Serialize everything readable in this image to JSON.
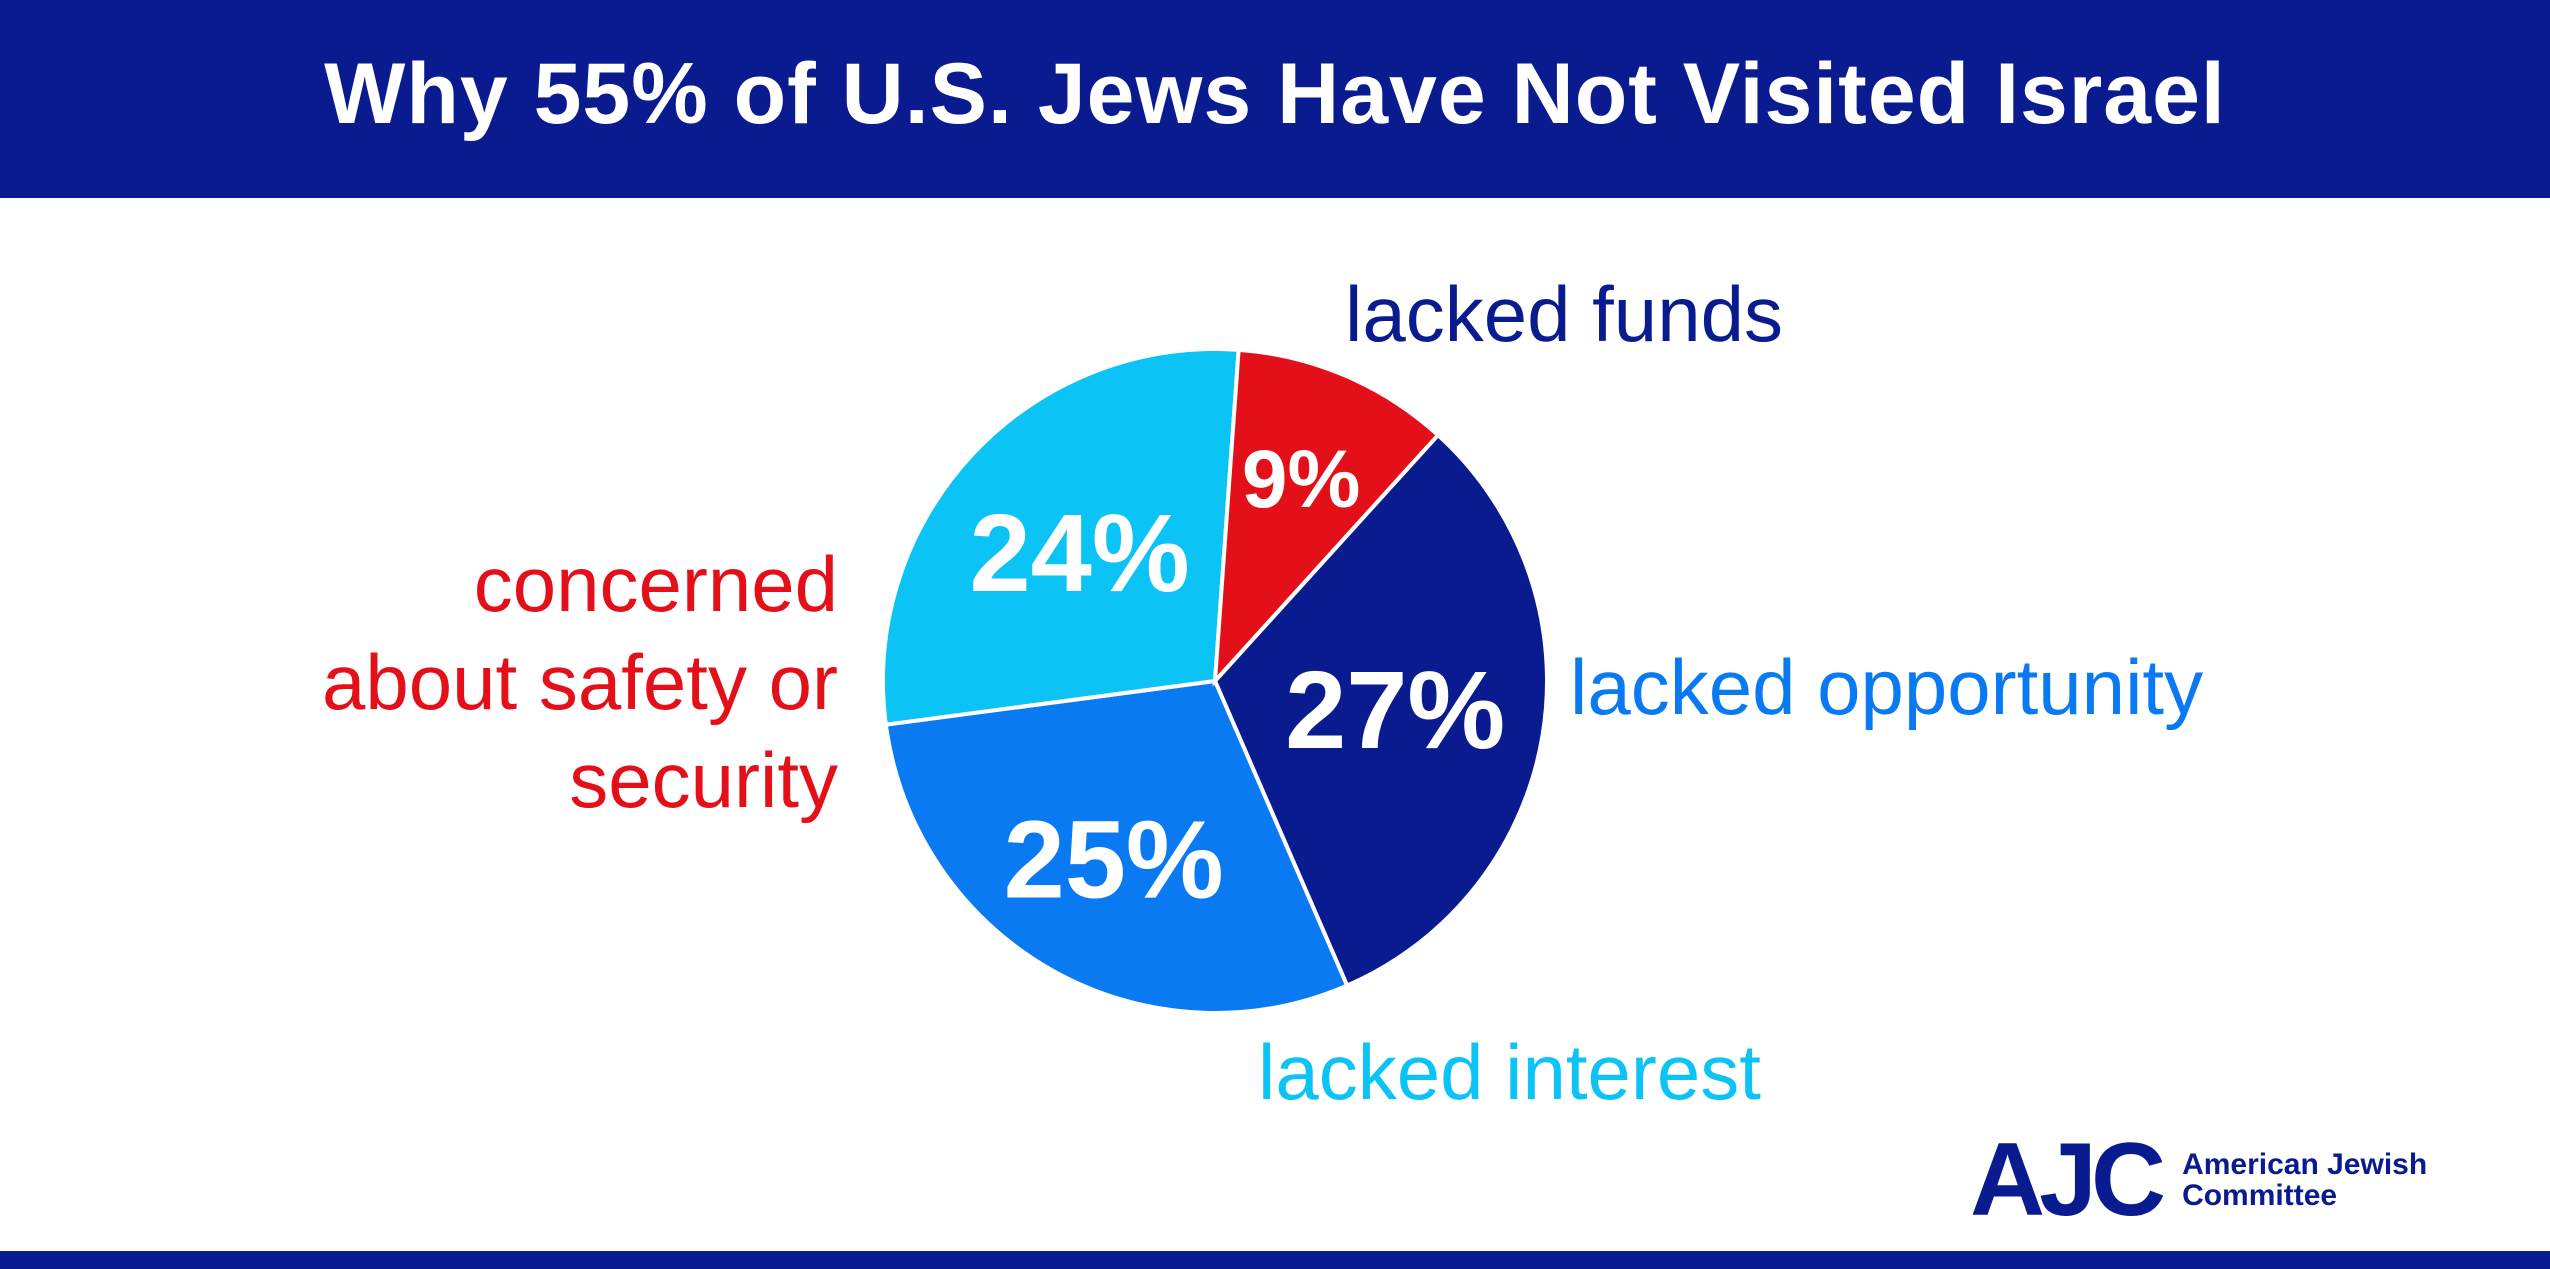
{
  "title": "Why 55% of U.S. Jews Have Not Visited Israel",
  "chart_data": {
    "type": "pie",
    "title": "Why 55% of U.S. Jews Have Not Visited Israel",
    "categories": [
      "lacked funds",
      "lacked opportunity",
      "lacked interest",
      "concerned about safety or security"
    ],
    "values": [
      27,
      25,
      24,
      9
    ],
    "value_labels": [
      "27%",
      "25%",
      "24%",
      "9%"
    ],
    "colors": [
      "#0a1a8f",
      "#0a7af2",
      "#0bc3f5",
      "#e3101a"
    ]
  },
  "logo": {
    "mark": "AJC",
    "line1": "American Jewish",
    "line2": "Committee"
  }
}
